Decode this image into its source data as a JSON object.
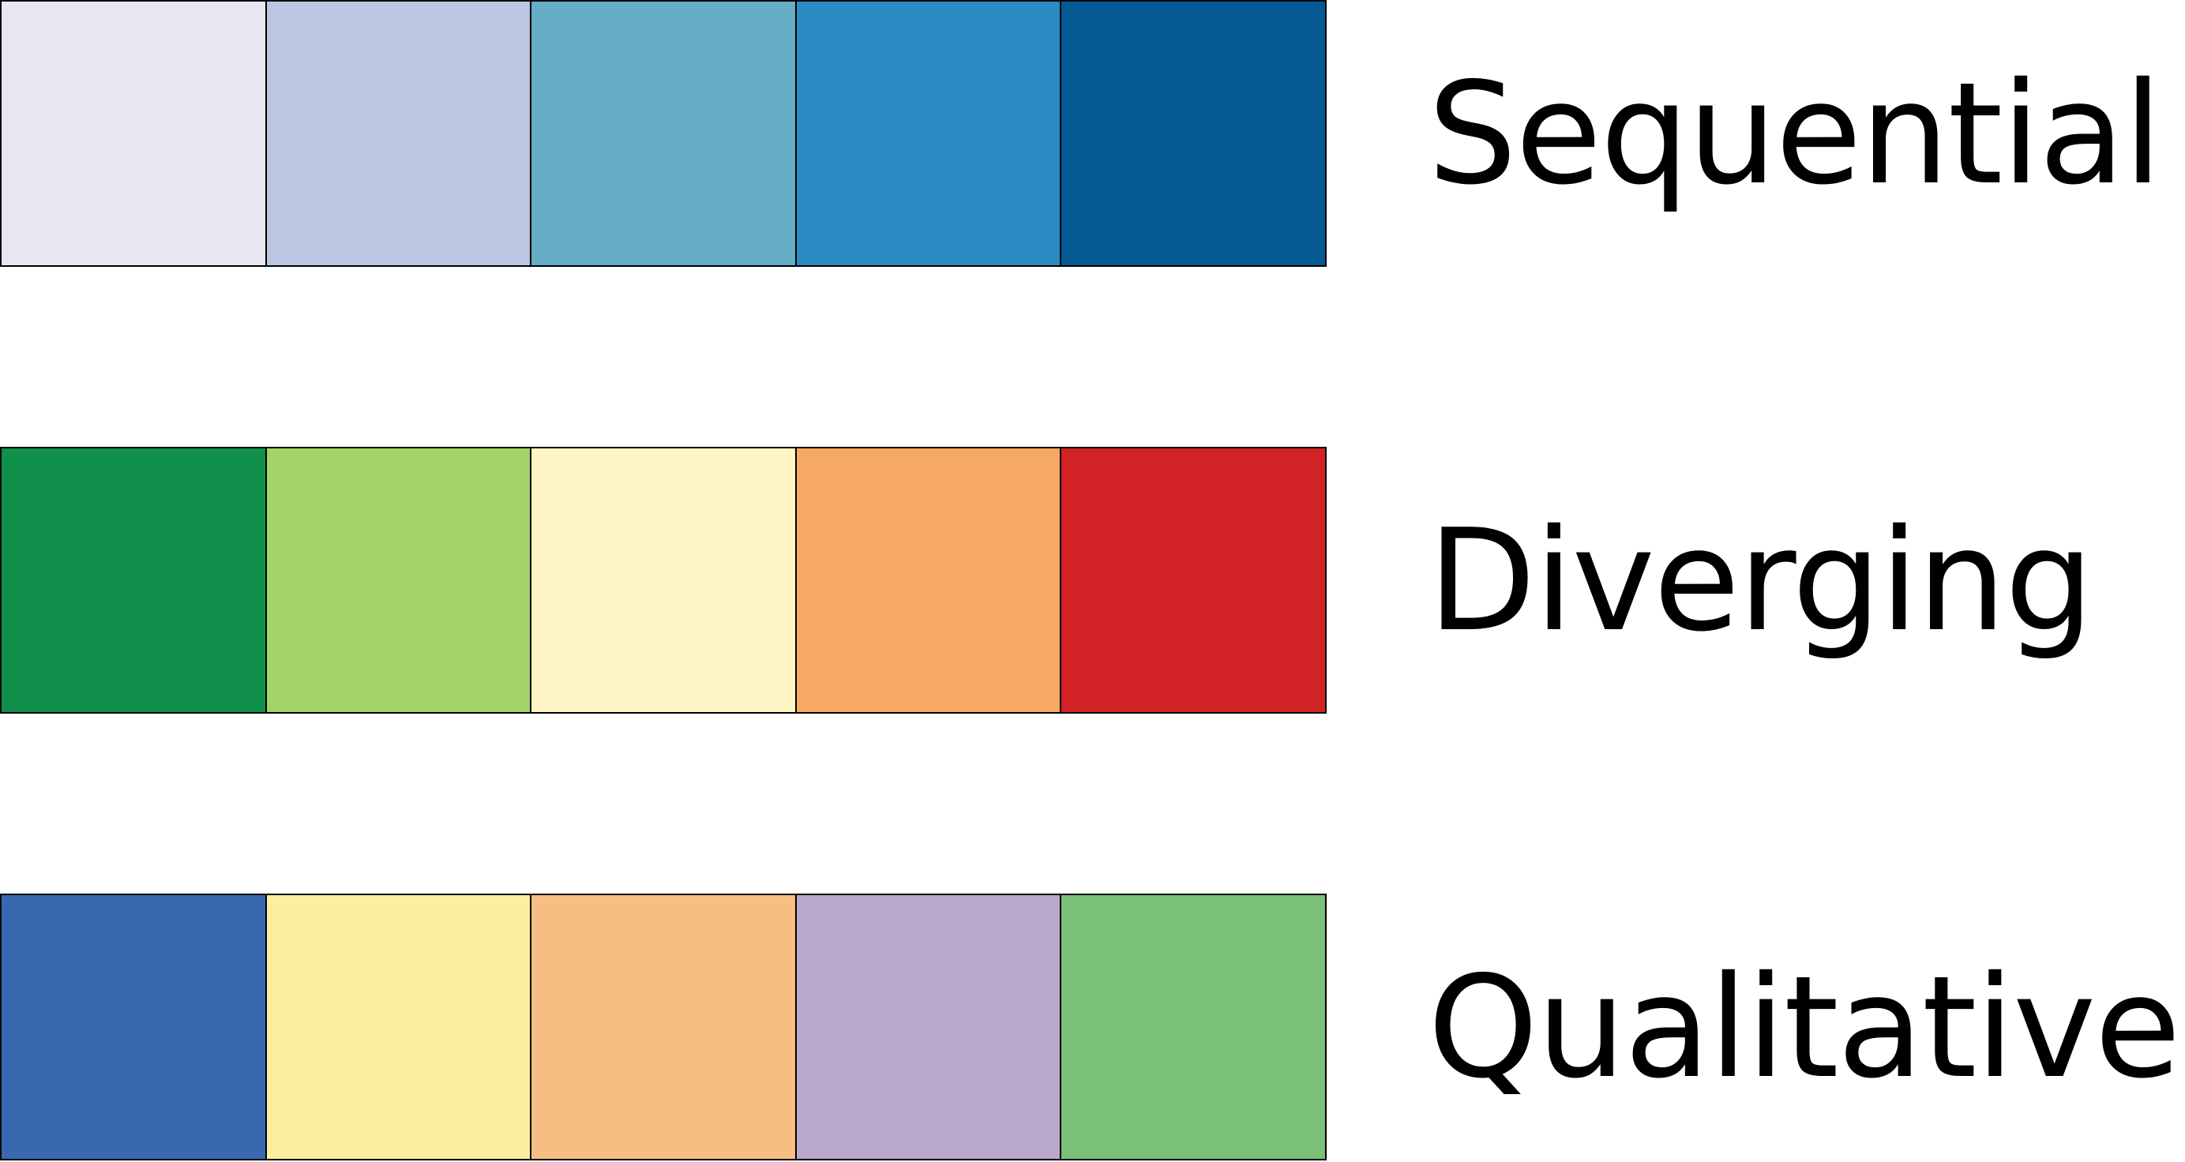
{
  "palettes": [
    {
      "label": "Sequential",
      "colors": [
        "#e9e7f3",
        "#bcc5e2",
        "#66adc6",
        "#2b8bc2",
        "#045993"
      ]
    },
    {
      "label": "Diverging",
      "colors": [
        "#11904b",
        "#a3d469",
        "#fdf5c4",
        "#f5a962",
        "#d12225"
      ]
    },
    {
      "label": "Qualitative",
      "colors": [
        "#3a68ae",
        "#fbef9d",
        "#f7be83",
        "#b7a8cc",
        "#7bc077"
      ]
    }
  ]
}
